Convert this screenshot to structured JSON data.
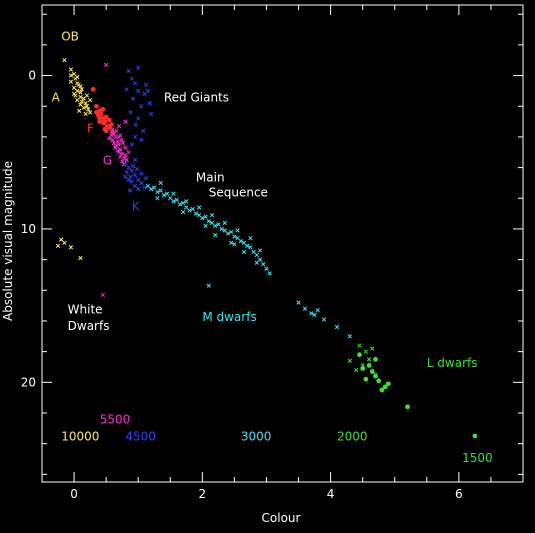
{
  "chart_data": {
    "type": "scatter",
    "title": "",
    "xlabel": "Colour",
    "ylabel": "Absolute visual magnitude",
    "xlim": [
      -0.5,
      7.0
    ],
    "ylim": [
      26.5,
      -4.6
    ],
    "y_inverted": true,
    "grid": false,
    "x_ticks": [
      "0",
      "2",
      "4",
      "6"
    ],
    "y_ticks": [
      "0",
      "10",
      "20"
    ],
    "x_tick_values": [
      0,
      2,
      4,
      6
    ],
    "y_tick_values": [
      0,
      10,
      20
    ],
    "background": "#000000",
    "axis_color": "#ffffff",
    "labels": [
      {
        "text": "OB",
        "x": -0.2,
        "y": -2.3,
        "color": "#ffe94d"
      },
      {
        "text": "A",
        "x": -0.35,
        "y": 1.7,
        "color": "#ffe94d"
      },
      {
        "text": "F",
        "x": 0.2,
        "y": 3.7,
        "color": "#ff2a2a"
      },
      {
        "text": "G",
        "x": 0.45,
        "y": 5.8,
        "color": "#ff2bd8"
      },
      {
        "text": "K",
        "x": 0.9,
        "y": 8.8,
        "color": "#2a3fff"
      },
      {
        "text": "Red Giants",
        "x": 1.4,
        "y": 1.7,
        "color": "#ffffff"
      },
      {
        "text": "Main",
        "x": 1.9,
        "y": 6.9,
        "color": "#ffffff"
      },
      {
        "text": "Sequence",
        "x": 2.1,
        "y": 7.9,
        "color": "#ffffff"
      },
      {
        "text": "White",
        "x": -0.1,
        "y": 15.5,
        "color": "#ffffff"
      },
      {
        "text": "Dwarfs",
        "x": -0.1,
        "y": 16.6,
        "color": "#ffffff"
      },
      {
        "text": "M dwarfs",
        "x": 2.0,
        "y": 16.0,
        "color": "#33e5f2"
      },
      {
        "text": "L dwarfs",
        "x": 5.5,
        "y": 19.0,
        "color": "#33e23a"
      },
      {
        "text": "5500",
        "x": 0.4,
        "y": 22.7,
        "color": "#ff2bd8"
      },
      {
        "text": "10000",
        "x": -0.2,
        "y": 23.8,
        "color": "#ffe94d"
      },
      {
        "text": "4500",
        "x": 0.8,
        "y": 23.8,
        "color": "#2a3fff"
      },
      {
        "text": "3000",
        "x": 2.6,
        "y": 23.8,
        "color": "#33e5f2"
      },
      {
        "text": "2000",
        "x": 4.1,
        "y": 23.8,
        "color": "#33e23a"
      },
      {
        "text": "1500",
        "x": 6.05,
        "y": 25.2,
        "color": "#33e23a"
      }
    ],
    "series": [
      {
        "color": "#ffe94d",
        "marker": "x",
        "points": [
          [
            -0.15,
            -1.0
          ],
          [
            -0.05,
            -0.4
          ],
          [
            0.0,
            -0.1
          ],
          [
            0.02,
            0.2
          ],
          [
            -0.05,
            0.4
          ],
          [
            0.05,
            0.5
          ],
          [
            0.0,
            0.8
          ],
          [
            0.07,
            0.6
          ],
          [
            0.05,
            1.0
          ],
          [
            0.1,
            1.1
          ],
          [
            0.02,
            1.3
          ],
          [
            0.1,
            1.4
          ],
          [
            0.15,
            1.5
          ],
          [
            0.05,
            1.6
          ],
          [
            0.12,
            1.7
          ],
          [
            0.18,
            1.8
          ],
          [
            0.1,
            1.9
          ],
          [
            0.2,
            2.0
          ],
          [
            0.15,
            2.1
          ],
          [
            0.22,
            2.2
          ],
          [
            0.08,
            2.3
          ],
          [
            0.25,
            1.6
          ],
          [
            0.0,
            1.2
          ],
          [
            0.12,
            0.9
          ],
          [
            0.2,
            1.3
          ],
          [
            0.25,
            2.4
          ],
          [
            0.18,
            2.5
          ],
          [
            -0.05,
            0.0
          ],
          [
            0.05,
            0.1
          ],
          [
            0.1,
            0.7
          ],
          [
            -0.2,
            10.7
          ],
          [
            -0.25,
            11.1
          ],
          [
            -0.15,
            10.9
          ],
          [
            0.1,
            11.9
          ],
          [
            -0.05,
            11.2
          ]
        ]
      },
      {
        "color": "#ff2a2a",
        "marker": "dot",
        "points": [
          [
            0.3,
            0.9
          ],
          [
            0.35,
            2.0
          ],
          [
            0.4,
            2.3
          ],
          [
            0.38,
            2.6
          ],
          [
            0.45,
            2.8
          ],
          [
            0.42,
            2.5
          ],
          [
            0.48,
            3.0
          ],
          [
            0.5,
            2.7
          ],
          [
            0.46,
            3.1
          ],
          [
            0.52,
            3.3
          ],
          [
            0.55,
            3.4
          ],
          [
            0.5,
            3.6
          ],
          [
            0.4,
            2.8
          ],
          [
            0.35,
            2.4
          ],
          [
            0.45,
            2.2
          ],
          [
            0.55,
            2.9
          ],
          [
            0.58,
            3.2
          ],
          [
            0.48,
            3.5
          ],
          [
            0.4,
            3.0
          ],
          [
            0.6,
            3.7
          ]
        ]
      },
      {
        "color": "#ff2bd8",
        "marker": "x",
        "points": [
          [
            0.6,
            3.5
          ],
          [
            0.62,
            3.8
          ],
          [
            0.65,
            4.0
          ],
          [
            0.6,
            4.2
          ],
          [
            0.68,
            4.3
          ],
          [
            0.7,
            4.5
          ],
          [
            0.65,
            4.6
          ],
          [
            0.72,
            4.8
          ],
          [
            0.7,
            5.0
          ],
          [
            0.75,
            5.1
          ],
          [
            0.72,
            5.3
          ],
          [
            0.78,
            5.4
          ],
          [
            0.75,
            5.6
          ],
          [
            0.8,
            5.2
          ],
          [
            0.68,
            4.9
          ],
          [
            0.62,
            4.4
          ],
          [
            0.58,
            3.9
          ],
          [
            0.74,
            4.2
          ],
          [
            0.8,
            4.7
          ],
          [
            0.82,
            5.5
          ],
          [
            0.66,
            3.6
          ],
          [
            0.7,
            4.0
          ],
          [
            0.76,
            4.4
          ],
          [
            0.64,
            4.7
          ],
          [
            0.78,
            5.8
          ],
          [
            0.72,
            3.9
          ],
          [
            0.55,
            4.1
          ],
          [
            0.85,
            5.0
          ],
          [
            0.8,
            3.0
          ],
          [
            0.7,
            3.3
          ],
          [
            0.5,
            -0.7
          ],
          [
            0.45,
            14.3
          ]
        ]
      },
      {
        "color": "#2a3fff",
        "marker": "x",
        "points": [
          [
            0.8,
            5.7
          ],
          [
            0.85,
            6.0
          ],
          [
            0.82,
            6.3
          ],
          [
            0.9,
            6.2
          ],
          [
            0.88,
            6.6
          ],
          [
            0.95,
            6.5
          ],
          [
            0.9,
            6.9
          ],
          [
            1.0,
            6.8
          ],
          [
            0.95,
            7.2
          ],
          [
            1.05,
            7.0
          ],
          [
            1.0,
            7.4
          ],
          [
            1.1,
            7.3
          ],
          [
            0.85,
            6.8
          ],
          [
            0.92,
            5.9
          ],
          [
            0.98,
            6.1
          ],
          [
            1.05,
            6.4
          ],
          [
            0.8,
            6.6
          ],
          [
            0.87,
            7.5
          ],
          [
            1.12,
            6.7
          ],
          [
            0.95,
            5.5
          ],
          [
            0.9,
            0.2
          ],
          [
            0.95,
            0.5
          ],
          [
            1.0,
            1.0
          ],
          [
            0.92,
            1.5
          ],
          [
            1.05,
            2.0
          ],
          [
            1.1,
            1.2
          ],
          [
            0.88,
            2.4
          ],
          [
            1.0,
            2.8
          ],
          [
            0.96,
            3.2
          ],
          [
            1.08,
            3.6
          ],
          [
            1.15,
            1.0
          ],
          [
            1.2,
            2.5
          ],
          [
            0.95,
            4.0
          ],
          [
            0.9,
            4.5
          ],
          [
            1.05,
            4.2
          ],
          [
            1.0,
            -0.5
          ],
          [
            0.85,
            -0.3
          ],
          [
            1.12,
            0.6
          ],
          [
            1.18,
            1.8
          ],
          [
            0.82,
            0.9
          ]
        ]
      },
      {
        "color": "#33e5f2",
        "marker": "x",
        "points": [
          [
            1.15,
            7.2
          ],
          [
            1.2,
            7.4
          ],
          [
            1.25,
            7.3
          ],
          [
            1.3,
            7.6
          ],
          [
            1.35,
            7.5
          ],
          [
            1.4,
            7.8
          ],
          [
            1.45,
            7.7
          ],
          [
            1.5,
            8.0
          ],
          [
            1.55,
            8.2
          ],
          [
            1.6,
            8.1
          ],
          [
            1.65,
            8.4
          ],
          [
            1.7,
            8.3
          ],
          [
            1.75,
            8.6
          ],
          [
            1.8,
            8.8
          ],
          [
            1.85,
            8.7
          ],
          [
            1.9,
            9.0
          ],
          [
            1.95,
            9.1
          ],
          [
            2.0,
            9.3
          ],
          [
            2.05,
            9.2
          ],
          [
            2.1,
            9.5
          ],
          [
            2.15,
            9.6
          ],
          [
            2.2,
            9.8
          ],
          [
            2.25,
            9.7
          ],
          [
            2.3,
            10.0
          ],
          [
            2.35,
            10.1
          ],
          [
            2.4,
            10.3
          ],
          [
            2.45,
            10.2
          ],
          [
            2.5,
            10.5
          ],
          [
            2.55,
            10.6
          ],
          [
            2.6,
            10.8
          ],
          [
            2.65,
            10.9
          ],
          [
            2.7,
            11.1
          ],
          [
            2.75,
            11.2
          ],
          [
            2.8,
            11.5
          ],
          [
            2.85,
            11.7
          ],
          [
            2.9,
            12.0
          ],
          [
            2.95,
            12.3
          ],
          [
            3.0,
            12.6
          ],
          [
            1.35,
            7.0
          ],
          [
            1.55,
            7.7
          ],
          [
            1.75,
            8.2
          ],
          [
            1.95,
            8.6
          ],
          [
            2.15,
            9.1
          ],
          [
            2.35,
            9.6
          ],
          [
            2.55,
            10.1
          ],
          [
            2.75,
            10.6
          ],
          [
            2.2,
            10.4
          ],
          [
            2.45,
            10.9
          ],
          [
            2.65,
            11.5
          ],
          [
            2.85,
            12.2
          ],
          [
            3.05,
            12.9
          ],
          [
            1.3,
            8.0
          ],
          [
            1.7,
            8.9
          ],
          [
            2.05,
            9.8
          ],
          [
            2.5,
            11.0
          ],
          [
            2.9,
            11.4
          ],
          [
            2.1,
            13.7
          ],
          [
            3.5,
            14.8
          ],
          [
            3.6,
            15.2
          ],
          [
            3.7,
            15.5
          ],
          [
            3.8,
            15.3
          ],
          [
            3.9,
            15.9
          ],
          [
            4.1,
            16.4
          ],
          [
            4.3,
            17.0
          ],
          [
            3.75,
            15.6
          ]
        ]
      },
      {
        "color": "#33e23a",
        "marker": "x",
        "points": [
          [
            4.45,
            17.6
          ],
          [
            4.55,
            18.0
          ],
          [
            4.6,
            18.5
          ],
          [
            4.5,
            18.9
          ],
          [
            4.4,
            19.2
          ],
          [
            4.7,
            19.5
          ],
          [
            4.65,
            17.8
          ],
          [
            4.3,
            18.6
          ]
        ]
      },
      {
        "color": "#33e23a",
        "marker": "dot",
        "points": [
          [
            4.45,
            18.2
          ],
          [
            4.6,
            18.9
          ],
          [
            4.65,
            19.3
          ],
          [
            4.7,
            19.6
          ],
          [
            4.55,
            19.8
          ],
          [
            4.7,
            18.5
          ],
          [
            4.8,
            20.5
          ],
          [
            4.85,
            20.3
          ],
          [
            4.9,
            20.1
          ],
          [
            5.2,
            21.6
          ],
          [
            6.25,
            23.5
          ],
          [
            4.5,
            19.1
          ],
          [
            4.75,
            19.9
          ]
        ]
      }
    ]
  }
}
